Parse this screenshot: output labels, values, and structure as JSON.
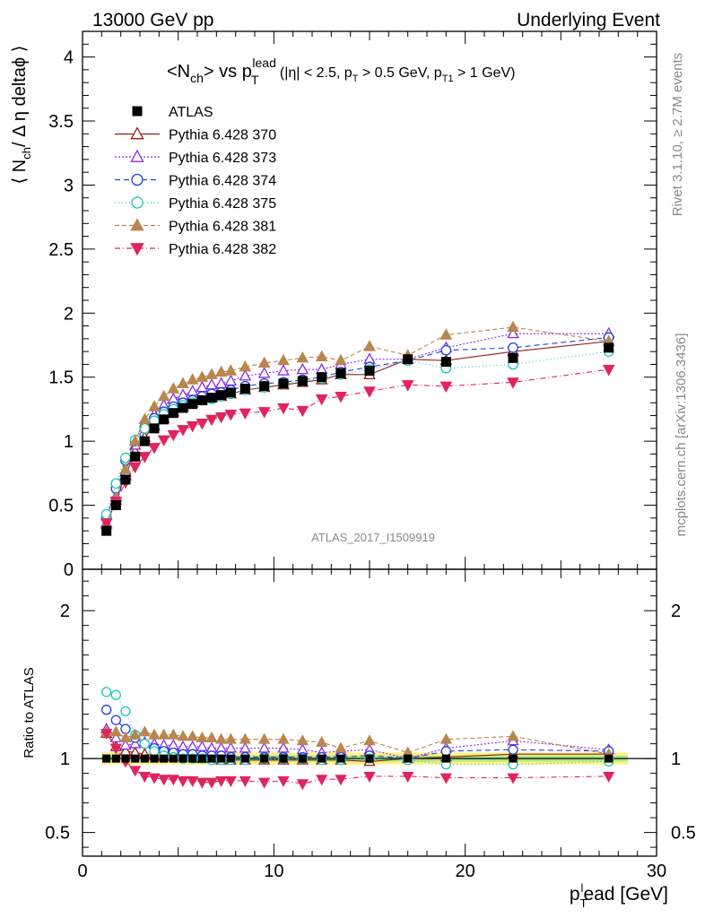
{
  "header": {
    "left": "13000 GeV pp",
    "right": "Underlying Event"
  },
  "side_labels": {
    "rivet": "Rivet 3.1.10, ≥ 2.7M events",
    "mcplots": "mcplots.cern.ch [arXiv:1306.3436]"
  },
  "chart_data": {
    "type": "scatter",
    "title": {
      "main": "<N",
      "main_sub": "ch",
      "main2": "> vs p",
      "main2_sub": "T",
      "main2_sup": "lead",
      "cuts": "(|η| < 2.5, p",
      "cuts_sub1": "T",
      "cuts_mid": " > 0.5 GeV, p",
      "cuts_sub2": "T1",
      "cuts_end": " > 1 GeV)"
    },
    "watermark": "ATLAS_2017_I1509919",
    "ylabel": {
      "pre": "⟨ N",
      "sub": "ch",
      "post": "/ Δ η deltaϕ ⟩"
    },
    "ratio_ylabel": "Ratio to ATLAS",
    "xlabel": {
      "pre": "p",
      "sub": "T",
      "sup": "l",
      "post": "ead [GeV]"
    },
    "xlim": [
      0,
      30
    ],
    "ylim": [
      0,
      4.2
    ],
    "ratio_ylim": [
      0.34,
      2.28
    ],
    "x_ticks": [
      0,
      10,
      20,
      30
    ],
    "y_ticks": [
      0,
      0.5,
      1,
      1.5,
      2,
      2.5,
      3,
      3.5,
      4
    ],
    "y_tick_labels": [
      "0",
      "0.5",
      "1",
      "1.5",
      "2",
      "2.5",
      "3",
      "3.5",
      "4"
    ],
    "ratio_ticks": [
      0.5,
      1,
      2
    ],
    "ratio_tick_labels": [
      "0.5",
      "1",
      "2"
    ],
    "ref_band_colors": [
      "#fff27f",
      "#a8e88a"
    ],
    "x": [
      1.25,
      1.75,
      2.25,
      2.75,
      3.25,
      3.75,
      4.25,
      4.75,
      5.25,
      5.75,
      6.25,
      6.75,
      7.25,
      7.75,
      8.5,
      9.5,
      10.5,
      11.5,
      12.5,
      13.5,
      15.0,
      17.0,
      19.0,
      22.5,
      27.5
    ],
    "series": [
      {
        "name": "ATLAS",
        "color": "#000000",
        "marker": "square",
        "filled": true,
        "dash": "none",
        "line": false,
        "values": [
          0.3,
          0.5,
          0.7,
          0.88,
          1.0,
          1.1,
          1.17,
          1.22,
          1.26,
          1.29,
          1.32,
          1.34,
          1.36,
          1.38,
          1.41,
          1.43,
          1.45,
          1.47,
          1.5,
          1.53,
          1.55,
          1.64,
          1.62,
          1.65,
          1.73
        ],
        "ratios": [
          1,
          1,
          1,
          1,
          1,
          1,
          1,
          1,
          1,
          1,
          1,
          1,
          1,
          1,
          1,
          1,
          1,
          1,
          1,
          1,
          1,
          1,
          1,
          1,
          1
        ]
      },
      {
        "name": "Pythia 6.428 370",
        "color": "#9b1b1b",
        "marker": "triangle-up",
        "filled": false,
        "dash": "none",
        "line": true,
        "values": [
          0.35,
          0.54,
          0.73,
          0.92,
          1.03,
          1.12,
          1.18,
          1.23,
          1.27,
          1.3,
          1.32,
          1.34,
          1.35,
          1.37,
          1.4,
          1.42,
          1.44,
          1.46,
          1.48,
          1.52,
          1.52,
          1.64,
          1.63,
          1.7,
          1.78
        ],
        "ratios": [
          1.17,
          1.08,
          1.05,
          1.04,
          1.03,
          1.02,
          1.01,
          1.01,
          1.01,
          1.01,
          1.0,
          1.0,
          0.99,
          0.99,
          0.99,
          0.99,
          0.99,
          0.99,
          0.99,
          0.99,
          0.98,
          1.0,
          1.01,
          1.03,
          1.03
        ]
      },
      {
        "name": "Pythia 6.428 373",
        "color": "#8a2be2",
        "marker": "triangle-up",
        "filled": false,
        "dash": "2,2",
        "line": true,
        "values": [
          0.36,
          0.57,
          0.76,
          0.97,
          1.11,
          1.21,
          1.28,
          1.33,
          1.36,
          1.39,
          1.42,
          1.44,
          1.45,
          1.47,
          1.51,
          1.53,
          1.55,
          1.56,
          1.56,
          1.6,
          1.64,
          1.64,
          1.73,
          1.84,
          1.84
        ],
        "ratios": [
          1.2,
          1.14,
          1.09,
          1.1,
          1.11,
          1.1,
          1.09,
          1.09,
          1.08,
          1.08,
          1.08,
          1.07,
          1.07,
          1.07,
          1.07,
          1.07,
          1.07,
          1.06,
          1.04,
          1.05,
          1.06,
          1.0,
          1.07,
          1.12,
          1.06
        ]
      },
      {
        "name": "Pythia 6.428 374",
        "color": "#1f3fd6",
        "marker": "circle",
        "filled": false,
        "dash": "6,4",
        "line": true,
        "values": [
          0.4,
          0.63,
          0.85,
          1.0,
          1.11,
          1.18,
          1.23,
          1.27,
          1.3,
          1.32,
          1.35,
          1.37,
          1.38,
          1.4,
          1.43,
          1.45,
          1.46,
          1.48,
          1.5,
          1.54,
          1.58,
          1.63,
          1.71,
          1.73,
          1.81
        ],
        "ratios": [
          1.33,
          1.26,
          1.2,
          1.14,
          1.1,
          1.07,
          1.05,
          1.04,
          1.03,
          1.03,
          1.02,
          1.02,
          1.02,
          1.01,
          1.01,
          1.01,
          1.01,
          1.01,
          1.01,
          1.01,
          1.02,
          1.0,
          1.05,
          1.06,
          1.05
        ]
      },
      {
        "name": "Pythia 6.428 375",
        "color": "#19c8b8",
        "marker": "circle",
        "filled": false,
        "dash": "1,3",
        "line": true,
        "values": [
          0.43,
          0.67,
          0.87,
          1.01,
          1.1,
          1.16,
          1.21,
          1.25,
          1.28,
          1.3,
          1.32,
          1.33,
          1.35,
          1.37,
          1.4,
          1.42,
          1.45,
          1.47,
          1.49,
          1.52,
          1.56,
          1.63,
          1.57,
          1.6,
          1.7
        ],
        "ratios": [
          1.45,
          1.43,
          1.32,
          1.16,
          1.1,
          1.05,
          1.02,
          1.01,
          1.0,
          1.0,
          1.0,
          0.99,
          0.99,
          0.99,
          0.99,
          1.0,
          1.0,
          1.0,
          0.99,
          0.99,
          1.0,
          0.99,
          0.96,
          0.96,
          0.98
        ]
      },
      {
        "name": "Pythia 6.428 381",
        "color": "#b8864e",
        "marker": "triangle-up",
        "filled": true,
        "dash": "5,3",
        "line": true,
        "values": [
          0.35,
          0.56,
          0.78,
          1.0,
          1.17,
          1.27,
          1.35,
          1.41,
          1.45,
          1.48,
          1.5,
          1.52,
          1.54,
          1.55,
          1.58,
          1.61,
          1.63,
          1.65,
          1.66,
          1.63,
          1.74,
          1.67,
          1.83,
          1.89,
          1.78
        ],
        "ratios": [
          1.18,
          1.18,
          1.14,
          1.16,
          1.18,
          1.16,
          1.16,
          1.16,
          1.15,
          1.15,
          1.14,
          1.14,
          1.13,
          1.13,
          1.13,
          1.13,
          1.13,
          1.12,
          1.11,
          1.07,
          1.12,
          1.04,
          1.13,
          1.15,
          1.03
        ]
      },
      {
        "name": "Pythia 6.428 382",
        "color": "#e0245e",
        "marker": "triangle-down",
        "filled": true,
        "dash": "6,3,1,3",
        "line": true,
        "values": [
          0.36,
          0.53,
          0.68,
          0.8,
          0.88,
          0.95,
          1.01,
          1.05,
          1.09,
          1.12,
          1.14,
          1.17,
          1.19,
          1.21,
          1.22,
          1.23,
          1.26,
          1.24,
          1.33,
          1.35,
          1.39,
          1.44,
          1.43,
          1.46,
          1.56
        ],
        "ratios": [
          1.17,
          1.07,
          0.98,
          0.92,
          0.88,
          0.87,
          0.86,
          0.86,
          0.85,
          0.85,
          0.84,
          0.84,
          0.85,
          0.85,
          0.85,
          0.84,
          0.85,
          0.83,
          0.86,
          0.86,
          0.88,
          0.88,
          0.87,
          0.87,
          0.88
        ]
      }
    ]
  }
}
